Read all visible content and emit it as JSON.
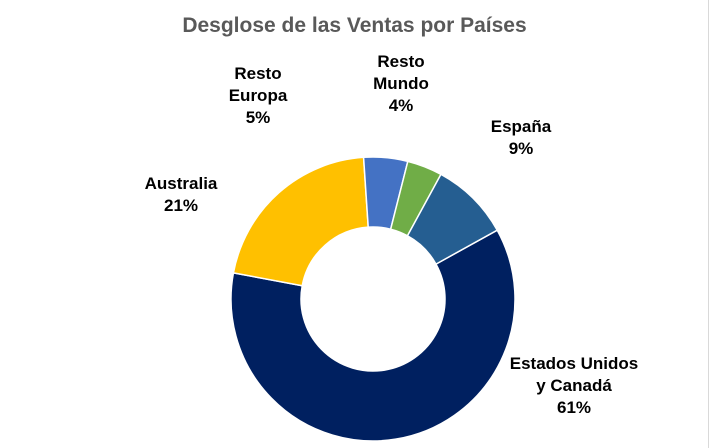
{
  "chart_data": {
    "type": "pie",
    "donut": true,
    "title": "Desglose de las Ventas por Países",
    "slices": [
      {
        "name": "Estados Unidos y Canadá",
        "label_lines": [
          "Estados Unidos",
          "y Canadá"
        ],
        "percent_label": "61%",
        "value": 61,
        "color": "#002060"
      },
      {
        "name": "Australia",
        "label_lines": [
          "Australia"
        ],
        "percent_label": "21%",
        "value": 21,
        "color": "#FFC000"
      },
      {
        "name": "Resto Europa",
        "label_lines": [
          "Resto",
          "Europa"
        ],
        "percent_label": "5%",
        "value": 5,
        "color": "#4472C4"
      },
      {
        "name": "Resto Mundo",
        "label_lines": [
          "Resto",
          "Mundo"
        ],
        "percent_label": "4%",
        "value": 4,
        "color": "#70AD47"
      },
      {
        "name": "España",
        "label_lines": [
          "España"
        ],
        "percent_label": "9%",
        "value": 9,
        "color": "#255E91"
      }
    ],
    "legend": "none"
  }
}
